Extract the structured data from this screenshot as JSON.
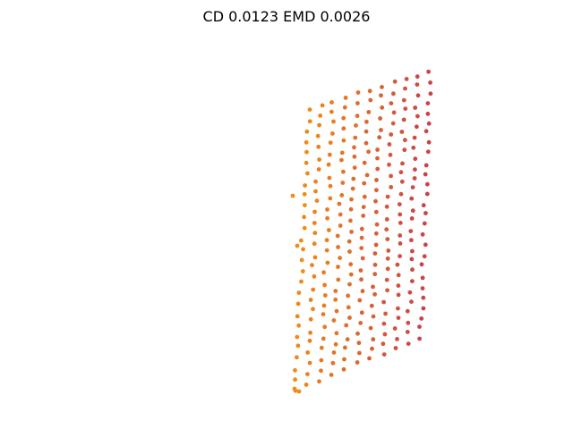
{
  "chart_data": {
    "type": "scatter",
    "title": "CD 0.0123  EMD 0.0026",
    "xlabel": "",
    "ylabel": "",
    "grid": false,
    "axes_visible": false,
    "colormap": [
      "#f28c14",
      "#c8424a"
    ],
    "note_colors": "points colored by depth: orange (front-left) to red (back-right)",
    "surface": {
      "corners": {
        "bottom_front": [
          330,
          437
        ],
        "bottom_back": [
          470,
          378
        ],
        "top_front": [
          345,
          122
        ],
        "top_back": [
          480,
          80
        ]
      },
      "columns": 11,
      "rows": 27
    }
  }
}
